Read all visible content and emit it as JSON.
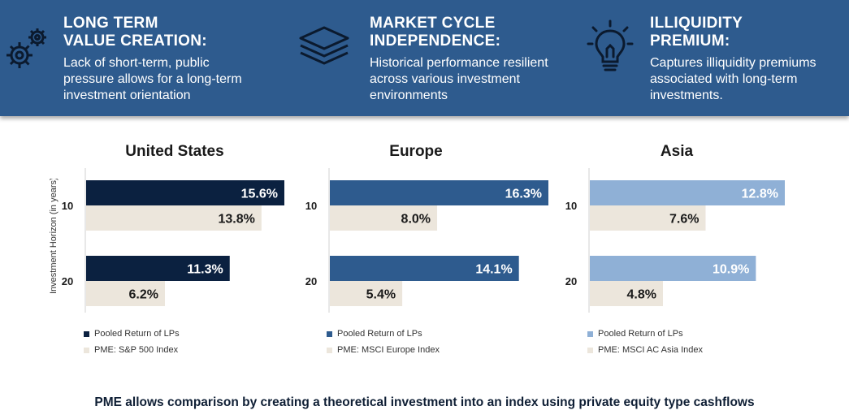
{
  "features": [
    {
      "title_line1": "LONG TERM",
      "title_line2": "VALUE CREATION:",
      "desc_line1": "Lack of short-term, public",
      "desc_line2": "pressure allows for a long-term",
      "desc_line3": "investment orientation",
      "icon": "gears-icon"
    },
    {
      "title_line1": "MARKET CYCLE",
      "title_line2": "INDEPENDENCE:",
      "desc_line1": "Historical performance resilient",
      "desc_line2": "across various investment",
      "desc_line3": "environments",
      "icon": "layers-icon"
    },
    {
      "title_line1": "ILLIQUIDITY",
      "title_line2": "PREMIUM:",
      "desc_line1": "Captures illiquidity premiums",
      "desc_line2": "associated with long-term",
      "desc_line3": "investments.",
      "icon": "lightbulb-icon"
    }
  ],
  "y_axis_label": "Investment Horizon (in years)",
  "footer": "PME allows comparison by creating a theoretical investment into an index using private equity type cashflows",
  "chart_data": [
    {
      "type": "bar",
      "title": "United States",
      "categories": [
        "10",
        "20"
      ],
      "series": [
        {
          "name": "Pooled Return of LPs",
          "values": [
            15.6,
            11.3
          ],
          "labels": [
            "15.6%",
            "11.3%"
          ],
          "color": "#0b2140"
        },
        {
          "name": "PME: S&P 500 Index",
          "values": [
            13.8,
            6.2
          ],
          "labels": [
            "13.8%",
            "6.2%"
          ],
          "color": "#ece6dc"
        }
      ],
      "xlim": [
        0,
        15.6
      ]
    },
    {
      "type": "bar",
      "title": "Europe",
      "categories": [
        "10",
        "20"
      ],
      "series": [
        {
          "name": "Pooled Return of LPs",
          "values": [
            16.3,
            14.1
          ],
          "labels": [
            "16.3%",
            "14.1%"
          ],
          "color": "#2e5b8e"
        },
        {
          "name": "PME: MSCI Europe Index",
          "values": [
            8.0,
            5.4
          ],
          "labels": [
            "8.0%",
            "5.4%"
          ],
          "color": "#ece6dc"
        }
      ],
      "xlim": [
        0,
        16.3
      ]
    },
    {
      "type": "bar",
      "title": "Asia",
      "categories": [
        "10",
        "20"
      ],
      "series": [
        {
          "name": "Pooled Return of LPs",
          "values": [
            12.8,
            10.9
          ],
          "labels": [
            "12.8%",
            "10.9%"
          ],
          "color": "#8fb0d6"
        },
        {
          "name": "PME: MSCI AC Asia Index",
          "values": [
            7.6,
            4.8
          ],
          "labels": [
            "7.6%",
            "4.8%"
          ],
          "color": "#ece6dc"
        }
      ],
      "xlim": [
        0,
        12.8
      ]
    }
  ]
}
